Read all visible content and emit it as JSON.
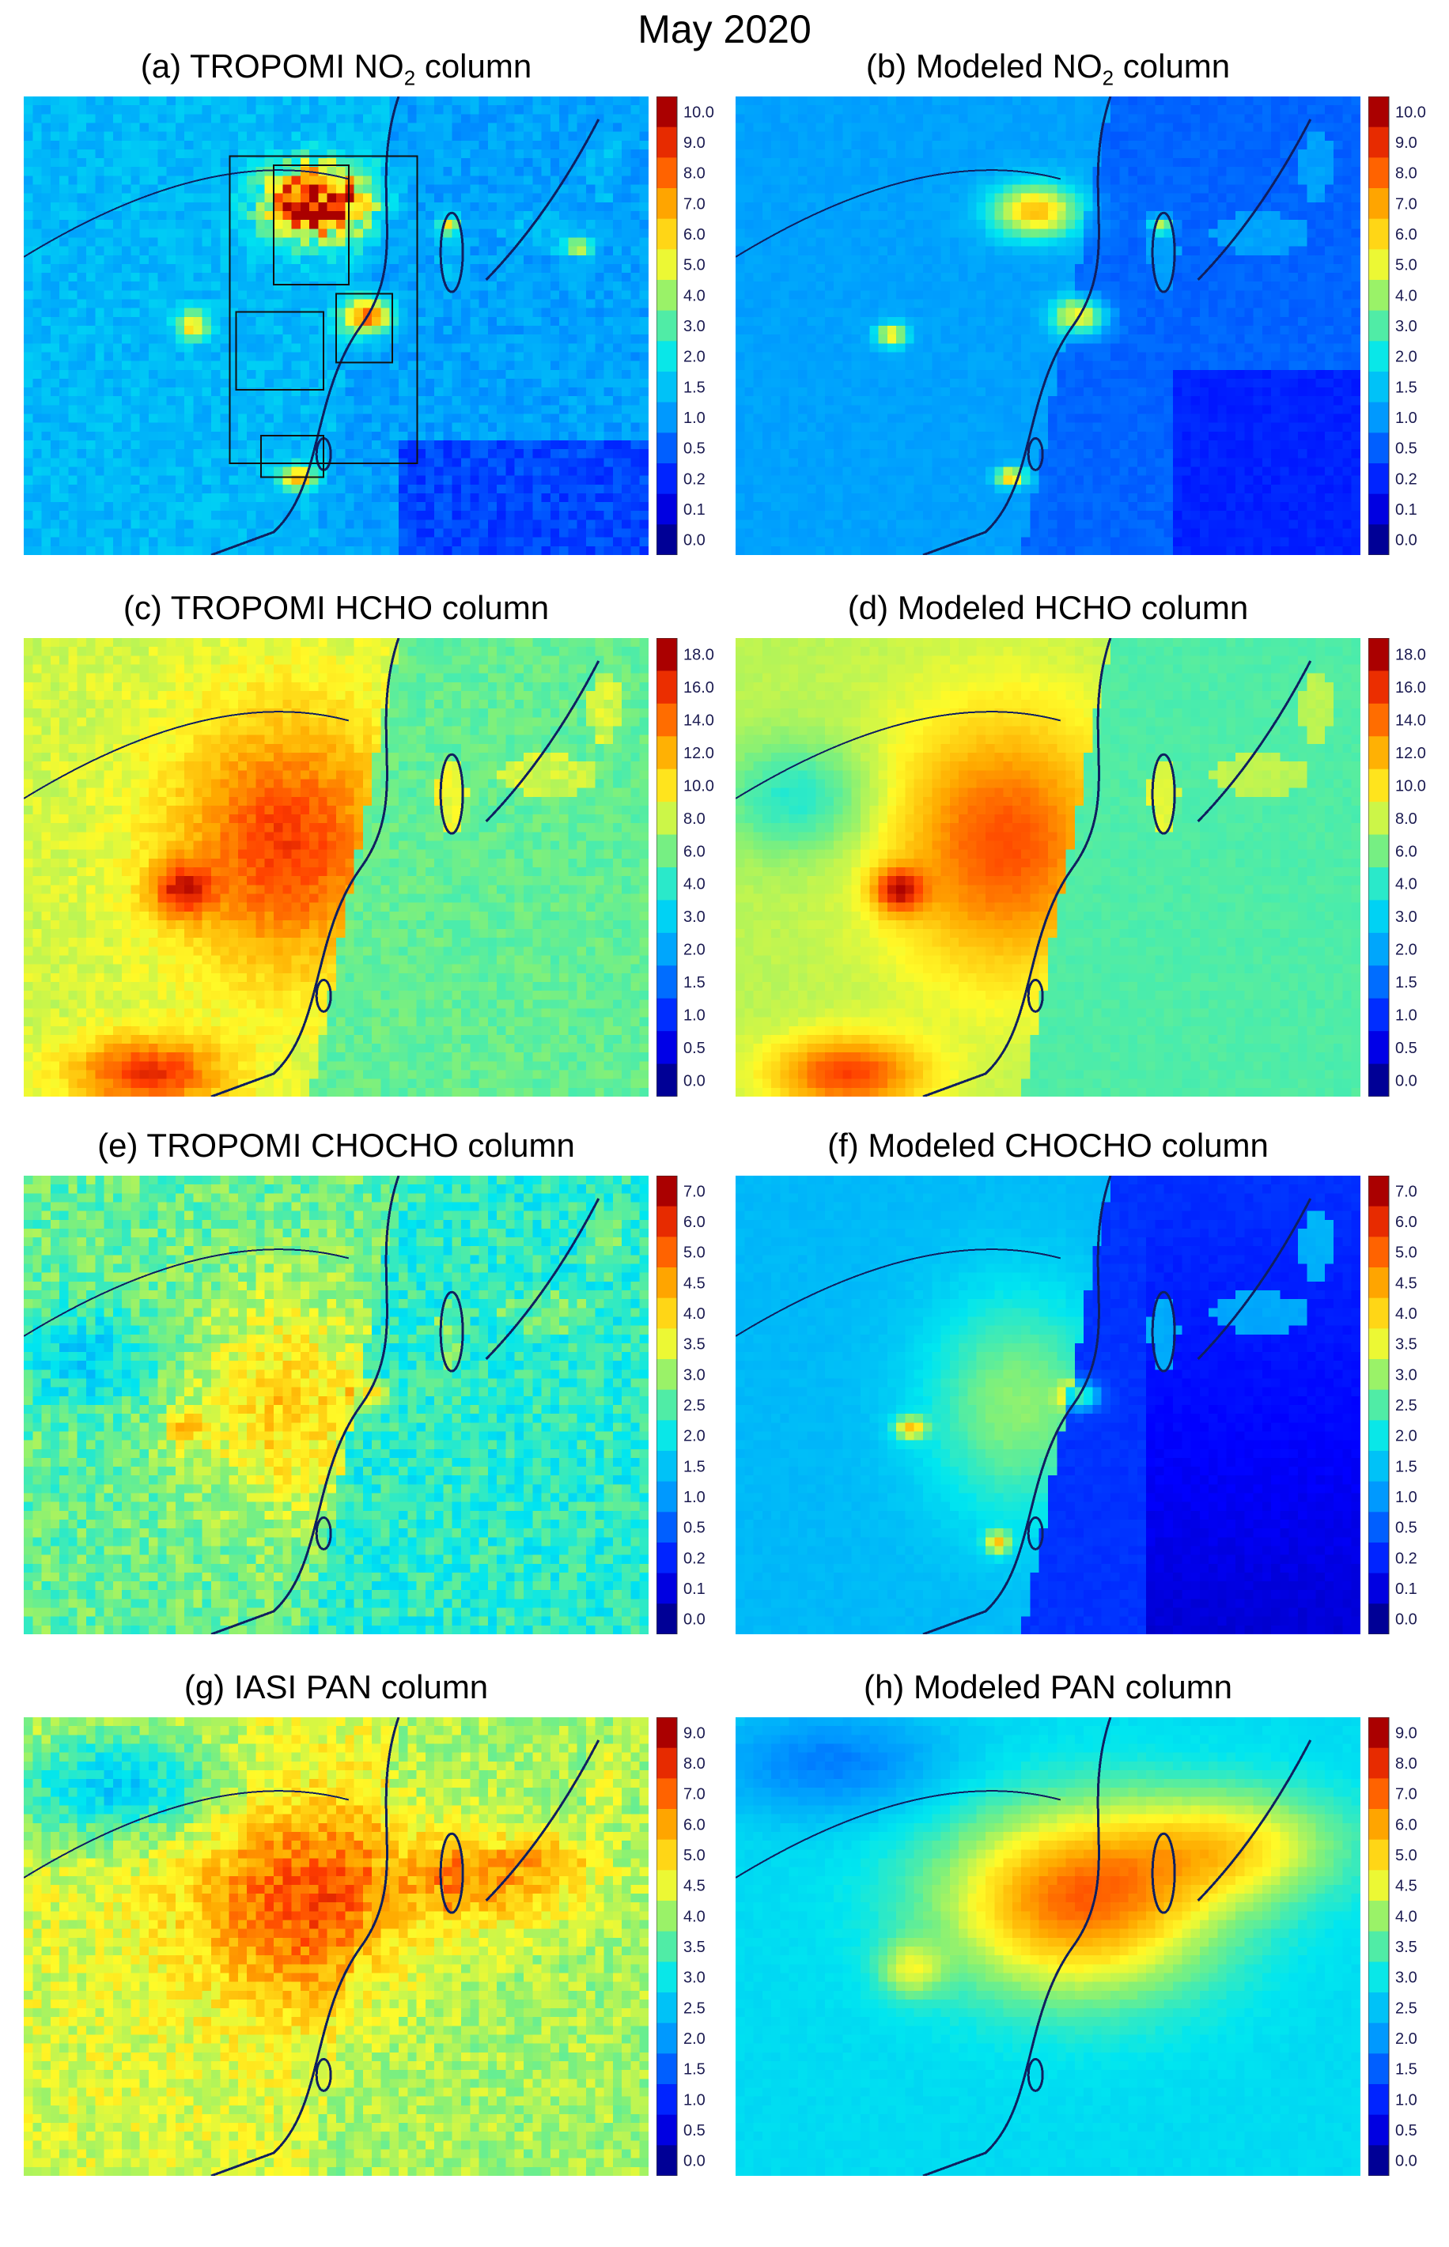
{
  "figure_title": "May 2020",
  "chart_data": [
    {
      "type": "heatmap",
      "panel_label": "(a)",
      "title_pre": "(a) TROPOMI NO",
      "title_sub": "2",
      "title_post": " column",
      "colorbar_ticks": [
        "10.0",
        "9.0",
        "8.0",
        "7.0",
        "6.0",
        "5.0",
        "4.0",
        "3.0",
        "2.0",
        "1.5",
        "1.0",
        "0.5",
        "0.2",
        "0.1",
        "0.0"
      ],
      "pattern": "tropomi_no2",
      "boxes": true
    },
    {
      "type": "heatmap",
      "panel_label": "(b)",
      "title_pre": "(b) Modeled NO",
      "title_sub": "2",
      "title_post": " column",
      "colorbar_ticks": [
        "10.0",
        "9.0",
        "8.0",
        "7.0",
        "6.0",
        "5.0",
        "4.0",
        "3.0",
        "2.0",
        "1.5",
        "1.0",
        "0.5",
        "0.2",
        "0.1",
        "0.0"
      ],
      "pattern": "model_no2",
      "boxes": false
    },
    {
      "type": "heatmap",
      "panel_label": "(c)",
      "title_pre": "(c) TROPOMI HCHO column",
      "title_sub": "",
      "title_post": "",
      "colorbar_ticks": [
        "18.0",
        "16.0",
        "14.0",
        "12.0",
        "10.0",
        "8.0",
        "6.0",
        "4.0",
        "3.0",
        "2.0",
        "1.5",
        "1.0",
        "0.5",
        "0.0"
      ],
      "pattern": "tropomi_hcho",
      "boxes": false
    },
    {
      "type": "heatmap",
      "panel_label": "(d)",
      "title_pre": "(d) Modeled HCHO column",
      "title_sub": "",
      "title_post": "",
      "colorbar_ticks": [
        "18.0",
        "16.0",
        "14.0",
        "12.0",
        "10.0",
        "8.0",
        "6.0",
        "4.0",
        "3.0",
        "2.0",
        "1.5",
        "1.0",
        "0.5",
        "0.0"
      ],
      "pattern": "model_hcho",
      "boxes": false
    },
    {
      "type": "heatmap",
      "panel_label": "(e)",
      "title_pre": "(e) TROPOMI CHOCHO column",
      "title_sub": "",
      "title_post": "",
      "colorbar_ticks": [
        "7.0",
        "6.0",
        "5.0",
        "4.5",
        "4.0",
        "3.5",
        "3.0",
        "2.5",
        "2.0",
        "1.5",
        "1.0",
        "0.5",
        "0.2",
        "0.1",
        "0.0"
      ],
      "pattern": "tropomi_chocho",
      "boxes": false
    },
    {
      "type": "heatmap",
      "panel_label": "(f)",
      "title_pre": "(f) Modeled CHOCHO column",
      "title_sub": "",
      "title_post": "",
      "colorbar_ticks": [
        "7.0",
        "6.0",
        "5.0",
        "4.5",
        "4.0",
        "3.5",
        "3.0",
        "2.5",
        "2.0",
        "1.5",
        "1.0",
        "0.5",
        "0.2",
        "0.1",
        "0.0"
      ],
      "pattern": "model_chocho",
      "boxes": false
    },
    {
      "type": "heatmap",
      "panel_label": "(g)",
      "title_pre": "(g) IASI PAN column",
      "title_sub": "",
      "title_post": "",
      "colorbar_ticks": [
        "9.0",
        "8.0",
        "7.0",
        "6.0",
        "5.0",
        "4.5",
        "4.0",
        "3.5",
        "3.0",
        "2.5",
        "2.0",
        "1.5",
        "1.0",
        "0.5",
        "0.0"
      ],
      "pattern": "iasi_pan",
      "boxes": false
    },
    {
      "type": "heatmap",
      "panel_label": "(h)",
      "title_pre": "(h) Modeled PAN column",
      "title_sub": "",
      "title_post": "",
      "colorbar_ticks": [
        "9.0",
        "8.0",
        "7.0",
        "6.0",
        "5.0",
        "4.5",
        "4.0",
        "3.5",
        "3.0",
        "2.5",
        "2.0",
        "1.5",
        "1.0",
        "0.5",
        "0.0"
      ],
      "pattern": "model_pan",
      "boxes": false
    }
  ]
}
